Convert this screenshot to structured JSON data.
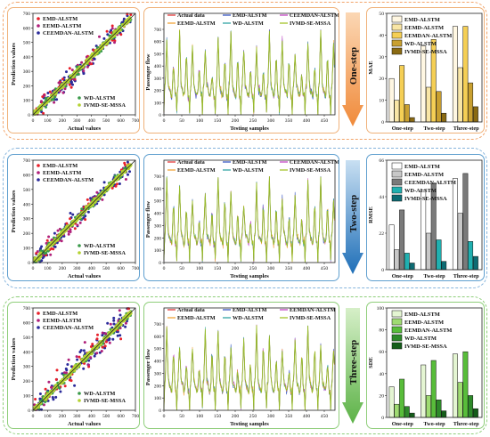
{
  "rows": [
    {
      "step_label": "One-step",
      "colors": {
        "band": "#f2a46a",
        "panel": "#f0b27a",
        "arrow_top": "#fbd7b4",
        "arrow_bottom": "#f08a3a"
      },
      "scatter": {
        "legend_top": [
          "EMD-ALSTM",
          "EEMD-ALSTM",
          "CEEMDAN-ALSTM"
        ],
        "legend_bottom": [
          "WD-ALSTM",
          "IVMD-SE-MSSA"
        ],
        "xlabel": "Actual values",
        "ylabel": "Prediction values"
      },
      "line": {
        "legend": [
          "Actual data",
          "EMD-ALSTM",
          "CEEMDAN-ALSTM",
          "EEMD-ALSTM",
          "WD-ALSTM",
          "IVMD-SE-MSSA"
        ],
        "xlabel": "Testing samples",
        "ylabel": "Passenger flow"
      },
      "bars": {
        "ylabel": "MAE",
        "legend": [
          "EMD-ALSTM",
          "EEMD-ALSTM",
          "EEMDAN-ALSTM",
          "WD-ALSTM",
          "IVMD-SE-MSSA"
        ],
        "colors": [
          "#fff7e2",
          "#f9e6a6",
          "#f5cf55",
          "#c9a030",
          "#8a6a12"
        ],
        "yticks": [
          "0",
          "10",
          "20",
          "30",
          "40",
          "50"
        ],
        "ymax": 50
      }
    },
    {
      "step_label": "Two-step",
      "colors": {
        "band": "#86b4dc",
        "panel": "#5f9fcf",
        "arrow_top": "#c8dff2",
        "arrow_bottom": "#1f6fb8"
      },
      "scatter": {
        "legend_top": [
          "EMD-ALSTM",
          "EEMD-ALSTM",
          "CEEMDAN-ALSTM"
        ],
        "legend_bottom": [
          "WD-ALSTM",
          "IVMD-SE-MSSA"
        ],
        "xlabel": "Actual values",
        "ylabel": "Prediction values"
      },
      "line": {
        "legend": [
          "Actual data",
          "EMD-ALSTM",
          "CEEMDAN-ALSTM",
          "EEMD-ALSTM",
          "WD-ALSTM",
          "IVMD-SE-MSSA"
        ],
        "xlabel": "Testing samples",
        "ylabel": "Passenger flow"
      },
      "bars": {
        "ylabel": "RMSE",
        "legend": [
          "EMD-ALSTM",
          "EEMD-ALSTM",
          "CEEMDAN-ALSTM",
          "WD-ALSTM",
          "IVMD-SE-MSSA"
        ],
        "colors": [
          "#ffffff",
          "#c8c8c8",
          "#7a7a7a",
          "#20b0b0",
          "#0d6b73"
        ],
        "yticks": [
          "0",
          "22",
          "44",
          "66"
        ],
        "ymax": 66
      }
    },
    {
      "step_label": "Three-step",
      "colors": {
        "band": "#8fce7a",
        "panel": "#8fce7a",
        "arrow_top": "#d6efc8",
        "arrow_bottom": "#5cb247"
      },
      "scatter": {
        "legend_top": [
          "EMD-ALSTM",
          "EEMD-ALSTM",
          "CEEMDAN-ALSTM"
        ],
        "legend_bottom": [
          "WD-ALSTM",
          "IVMD-SE-MSSA"
        ],
        "xlabel": "Actual values",
        "ylabel": "Prediction values"
      },
      "line": {
        "legend": [
          "Actual data",
          "EMD-ALSTM",
          "EEMDAN-ALSTM",
          "EEMD-ALSTM",
          "WD-ALSTM",
          "IVMD-SE-MSSA"
        ],
        "xlabel": "Testing samples",
        "ylabel": "Passenger flow"
      },
      "bars": {
        "ylabel": "SDE",
        "legend": [
          "EMD-ALSTM",
          "EEMD-ALSTM",
          "EEMDAN-ALSTM",
          "WD-ALSTM",
          "IVMD-SE-MSSA"
        ],
        "colors": [
          "#e4f5d2",
          "#9fdb72",
          "#58bd3a",
          "#2e8a2a",
          "#155d1a"
        ],
        "yticks": [
          "0",
          "20",
          "40",
          "60",
          "80",
          "100"
        ],
        "ymax": 100
      }
    }
  ],
  "chart_data": [
    {
      "type": "scatter",
      "title": "",
      "xlabel": "Actual values",
      "ylabel": "Prediction values",
      "xlim": [
        0,
        700
      ],
      "ylim": [
        0,
        700
      ],
      "xticks": [
        0,
        100,
        200,
        300,
        400,
        500,
        600,
        700
      ],
      "yticks": [
        0,
        100,
        200,
        300,
        400,
        500,
        600,
        700
      ],
      "series": [
        {
          "name": "EMD-ALSTM",
          "color": "#e8202a"
        },
        {
          "name": "EEMD-ALSTM",
          "color": "#b0207a"
        },
        {
          "name": "CEEMDAN-ALSTM",
          "color": "#2a2a9a"
        },
        {
          "name": "WD-ALSTM",
          "color": "#3a9a4a"
        },
        {
          "name": "IVMD-SE-MSSA",
          "color": "#b4d230"
        }
      ]
    },
    {
      "type": "line",
      "title": "",
      "xlabel": "Testing samples",
      "ylabel": "Passenger flow",
      "xlim": [
        0,
        480
      ],
      "ylim": [
        0,
        700
      ],
      "xticks": [
        0,
        50,
        100,
        150,
        200,
        250,
        300,
        350,
        400,
        450
      ],
      "yticks": [
        0,
        100,
        200,
        300,
        400,
        500,
        600,
        700
      ],
      "series": [
        {
          "name": "Actual data",
          "color": "#e03030"
        },
        {
          "name": "EMD-ALSTM",
          "color": "#3050c0"
        },
        {
          "name": "CEEMDAN-ALSTM",
          "color": "#c040c0"
        },
        {
          "name": "EEMD-ALSTM",
          "color": "#f0a030"
        },
        {
          "name": "WD-ALSTM",
          "color": "#2aa0a0"
        },
        {
          "name": "IVMD-SE-MSSA",
          "color": "#a0c020"
        }
      ]
    },
    {
      "type": "bar",
      "title": "",
      "ylabel": "MAE",
      "categories": [
        "One-step",
        "Two-step",
        "Three-step"
      ],
      "ylim": [
        0,
        50
      ],
      "series": [
        {
          "name": "EMD-ALSTM",
          "values": [
            20,
            35,
            44
          ]
        },
        {
          "name": "EEMD-ALSTM",
          "values": [
            10,
            16,
            25
          ]
        },
        {
          "name": "EEMDAN-ALSTM",
          "values": [
            26,
            38,
            44
          ]
        },
        {
          "name": "WD-ALSTM",
          "values": [
            8,
            14,
            18
          ]
        },
        {
          "name": "IVMD-SE-MSSA",
          "values": [
            2,
            4,
            7
          ]
        }
      ]
    },
    {
      "type": "bar",
      "title": "",
      "ylabel": "RMSE",
      "categories": [
        "One-step",
        "Two-step",
        "Three-step"
      ],
      "ylim": [
        0,
        66
      ],
      "series": [
        {
          "name": "EMD-ALSTM",
          "values": [
            27,
            48,
            55
          ]
        },
        {
          "name": "EEMD-ALSTM",
          "values": [
            12,
            22,
            34
          ]
        },
        {
          "name": "CEEMDAN-ALSTM",
          "values": [
            36,
            52,
            58
          ]
        },
        {
          "name": "WD-ALSTM",
          "values": [
            10,
            18,
            17
          ]
        },
        {
          "name": "IVMD-SE-MSSA",
          "values": [
            4,
            5,
            8
          ]
        }
      ]
    },
    {
      "type": "bar",
      "title": "",
      "ylabel": "SDE",
      "categories": [
        "One-step",
        "Two-step",
        "Three-step"
      ],
      "ylim": [
        0,
        100
      ],
      "series": [
        {
          "name": "EMD-ALSTM",
          "values": [
            28,
            48,
            58
          ]
        },
        {
          "name": "EEMD-ALSTM",
          "values": [
            12,
            20,
            32
          ]
        },
        {
          "name": "EEMDAN-ALSTM",
          "values": [
            35,
            52,
            60
          ]
        },
        {
          "name": "WD-ALSTM",
          "values": [
            10,
            16,
            20
          ]
        },
        {
          "name": "IVMD-SE-MSSA",
          "values": [
            4,
            6,
            8
          ]
        }
      ]
    }
  ]
}
